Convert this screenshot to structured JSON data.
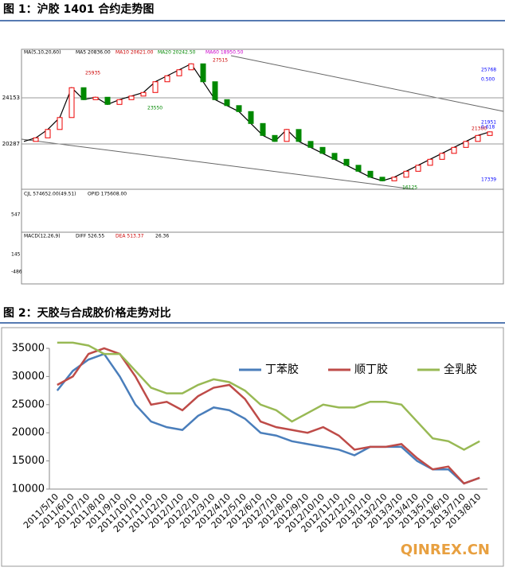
{
  "chart_data": [
    {
      "type": "line",
      "title": "图 1：沪胶 1401 合约走势图",
      "annotations": [
        "MA(5,10,20,60)",
        "MA5 20836.00",
        "MA10 20621.00",
        "MA20 20242.50",
        "MA60 18950.50",
        "25935",
        "23550",
        "27515",
        "21300",
        "16125",
        "25768",
        "0.500",
        "21951",
        "0.618",
        "17339",
        "CJL 574652.00(49.51)",
        "OPID 175608.00",
        "547",
        "MACD(12,26,9)",
        "DIFF 526.55",
        "DEA 513.37",
        "26.36",
        "145",
        "-486"
      ],
      "ylim": [
        16490,
        28150
      ],
      "yticks": [
        20287,
        24153
      ],
      "color": "#000000",
      "values": [
        20500,
        20800,
        21500,
        22500,
        25000,
        24000,
        24200,
        23600,
        24000,
        24300,
        24600,
        25500,
        26000,
        26500,
        27000,
        25500,
        24000,
        23500,
        23000,
        22000,
        21000,
        20500,
        21500,
        20500,
        20000,
        19500,
        19000,
        18500,
        18000,
        17500,
        17200,
        17500,
        18000,
        18500,
        19000,
        19500,
        20000,
        20500,
        21000,
        21300
      ]
    },
    {
      "type": "line",
      "title": "图 2：天胶与合成胶价格走势对比",
      "watermark": "QINREX.CN",
      "categories": [
        "2011/5/10",
        "2011/6/10",
        "2011/7/10",
        "2011/8/10",
        "2011/9/10",
        "2011/10/10",
        "2011/11/10",
        "2011/12/10",
        "2012/1/10",
        "2012/2/10",
        "2012/3/10",
        "2012/4/10",
        "2012/5/10",
        "2012/6/10",
        "2012/7/10",
        "2012/8/10",
        "2012/9/10",
        "2012/10/10",
        "2012/11/10",
        "2012/12/10",
        "2013/1/10",
        "2013/2/10",
        "2013/3/10",
        "2013/4/10",
        "2013/5/10",
        "2013/6/10",
        "2013/7/10",
        "2013/8/10"
      ],
      "ylim": [
        10000,
        35000
      ],
      "yticks": [
        10000,
        15000,
        20000,
        25000,
        30000,
        35000
      ],
      "series": [
        {
          "name": "丁苯胶",
          "color": "#4a7ebb",
          "values": [
            27500,
            31000,
            33000,
            34000,
            30000,
            25000,
            22000,
            21000,
            20500,
            23000,
            24500,
            24000,
            22500,
            20000,
            19500,
            18500,
            18000,
            17500,
            17000,
            16000,
            17500,
            17500,
            17500,
            15000,
            13500,
            13500,
            11000,
            12000
          ]
        },
        {
          "name": "顺丁胶",
          "color": "#be4b48",
          "values": [
            28500,
            30000,
            34000,
            35000,
            34000,
            30000,
            25000,
            25500,
            24000,
            26500,
            28000,
            28500,
            26000,
            22000,
            21000,
            20500,
            20000,
            21000,
            19500,
            17000,
            17500,
            17500,
            18000,
            15500,
            13500,
            14000,
            11000,
            12000
          ]
        },
        {
          "name": "全乳胶",
          "color": "#98b954",
          "values": [
            36000,
            36000,
            35500,
            34000,
            34000,
            31000,
            28000,
            27000,
            27000,
            28500,
            29500,
            29000,
            27500,
            25000,
            24000,
            22000,
            23500,
            25000,
            24500,
            24500,
            25500,
            25500,
            25000,
            22000,
            19000,
            18500,
            17000,
            18500
          ]
        }
      ]
    }
  ]
}
